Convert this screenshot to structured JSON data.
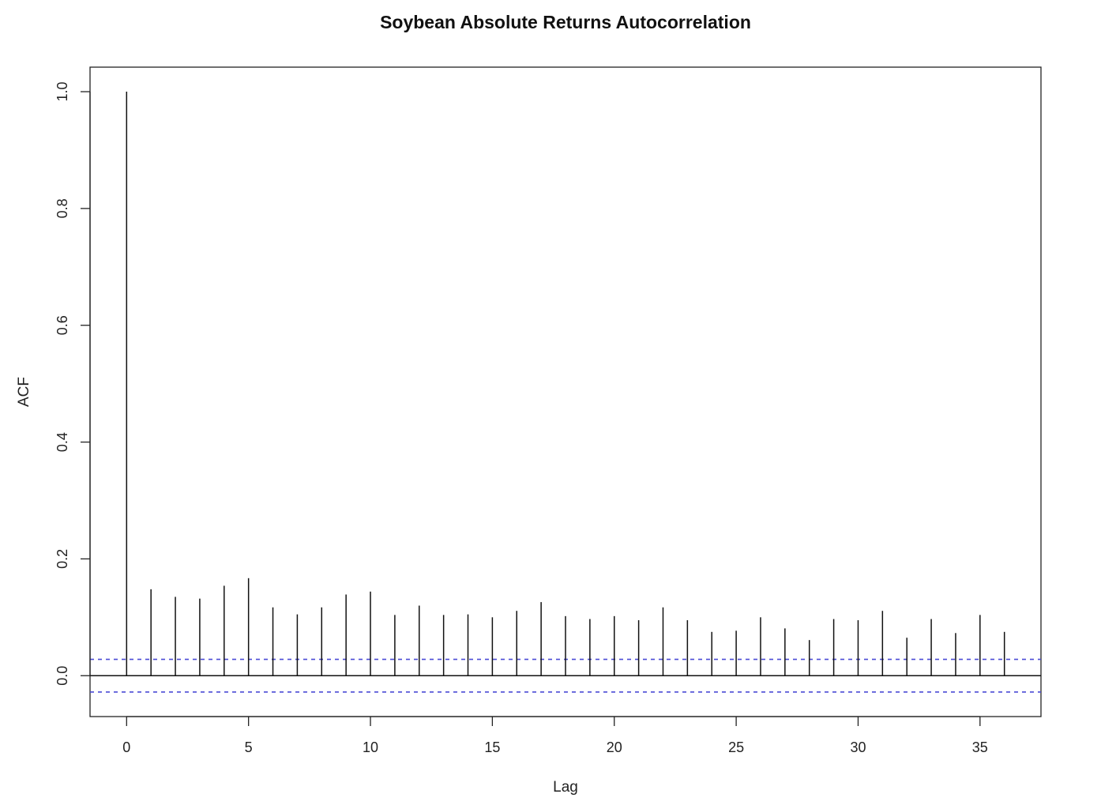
{
  "chart_data": {
    "type": "bar",
    "title": "Soybean Absolute Returns Autocorrelation",
    "xlabel": "Lag",
    "ylabel": "ACF",
    "x": [
      0,
      1,
      2,
      3,
      4,
      5,
      6,
      7,
      8,
      9,
      10,
      11,
      12,
      13,
      14,
      15,
      16,
      17,
      18,
      19,
      20,
      21,
      22,
      23,
      24,
      25,
      26,
      27,
      28,
      29,
      30,
      31,
      32,
      33,
      34,
      35,
      36
    ],
    "values": [
      1.0,
      0.148,
      0.135,
      0.132,
      0.154,
      0.167,
      0.117,
      0.105,
      0.117,
      0.139,
      0.144,
      0.104,
      0.12,
      0.104,
      0.105,
      0.1,
      0.111,
      0.126,
      0.102,
      0.097,
      0.102,
      0.095,
      0.117,
      0.095,
      0.075,
      0.077,
      0.1,
      0.081,
      0.061,
      0.097,
      0.095,
      0.111,
      0.065,
      0.097,
      0.073,
      0.104,
      0.075
    ],
    "confidence_band": [
      -0.028,
      0.028
    ],
    "confidence_color": "#4b4bd6",
    "bar_color": "#111111",
    "xlim": [
      -1.5,
      37.5
    ],
    "ylim": [
      -0.07,
      1.042
    ],
    "xticks": [
      0,
      5,
      10,
      15,
      20,
      25,
      30,
      35
    ],
    "xtick_labels": [
      "0",
      "5",
      "10",
      "15",
      "20",
      "25",
      "30",
      "35"
    ],
    "yticks": [
      0.0,
      0.2,
      0.4,
      0.6,
      0.8,
      1.0
    ],
    "ytick_labels": [
      "0.0",
      "0.2",
      "0.4",
      "0.6",
      "0.8",
      "1.0"
    ],
    "grid": false,
    "legend": "none"
  }
}
